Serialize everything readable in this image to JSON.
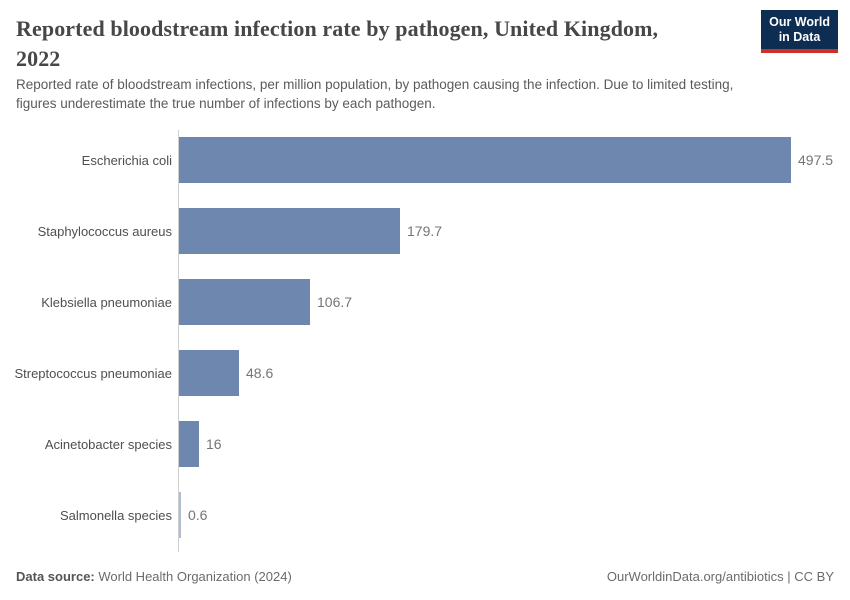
{
  "header": {
    "title_lines": [
      "Reported bloodstream infection rate by pathogen, United Kingdom,",
      "2022"
    ],
    "subtitle_lines": [
      "Reported rate of bloodstream infections, per million population, by pathogen causing the infection. Due to limited testing,",
      "figures underestimate the true number of infections by each pathogen."
    ],
    "logo_lines": [
      "Our World",
      "in Data"
    ]
  },
  "chart_data": {
    "type": "bar",
    "orientation": "horizontal",
    "title": "Reported bloodstream infection rate by pathogen, United Kingdom, 2022",
    "unit": "infections per million population",
    "categories": [
      "Escherichia coli",
      "Staphylococcus aureus",
      "Klebsiella pneumoniae",
      "Streptococcus pneumoniae",
      "Acinetobacter species",
      "Salmonella species"
    ],
    "values": [
      497.5,
      179.7,
      106.7,
      48.6,
      16,
      0.6
    ],
    "value_labels": [
      "497.5",
      "179.7",
      "106.7",
      "48.6",
      "16",
      "0.6"
    ],
    "xlabel": "",
    "ylabel": "",
    "xlim": [
      0,
      500
    ],
    "grid": false,
    "x_axis_ticks_visible": false,
    "data_labels": true,
    "legend": "none"
  },
  "colors": {
    "bar": "#6e87af",
    "bar_thin": "#aebdd4",
    "logo_bg": "#0d2d52",
    "logo_accent": "#cc3029",
    "axis": "#cfcfcf"
  },
  "footer": {
    "source_label": "Data source:",
    "source_text": " World Health Organization (2024)",
    "credit": "OurWorldinData.org/antibiotics | CC BY"
  }
}
